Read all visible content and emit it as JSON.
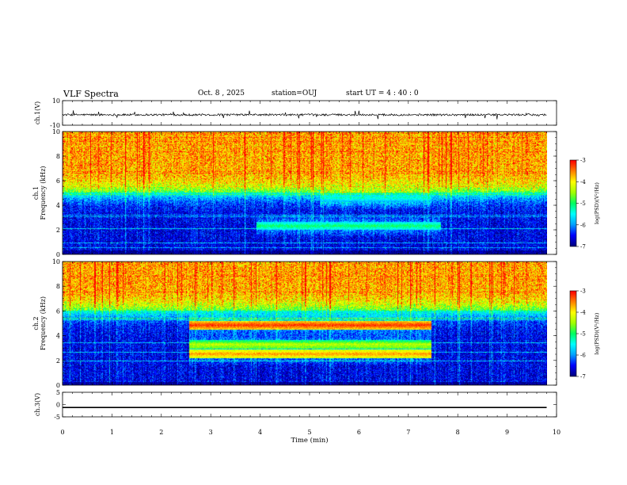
{
  "header": {
    "title": "VLF Spectra",
    "date": "Oct. 8  , 2025",
    "station": "station=OUJ",
    "start_ut": "start  UT =   4 : 40 : 0"
  },
  "colors": {
    "colormap": [
      "#00007f",
      "#0000ff",
      "#00a0ff",
      "#00ffff",
      "#00ff60",
      "#a0ff00",
      "#ffff00",
      "#ff8000",
      "#ff0000"
    ]
  },
  "chart_data": [
    {
      "id": "ch1-waveform",
      "type": "line",
      "ylabel": "ch.1(V)",
      "ylim": [
        -10,
        10
      ],
      "yticks": [
        "10",
        "-10"
      ],
      "xlim": [
        0,
        10
      ],
      "baseline_v": -1.5,
      "trace_end_min": 9.8
    },
    {
      "id": "ch1-spectrogram",
      "type": "heatmap",
      "ylabel": "ch.1\nFrequency (kHz)",
      "ylim": [
        0,
        10
      ],
      "yticks": [
        "0",
        "2",
        "4",
        "6",
        "8",
        "10"
      ],
      "xlim": [
        0,
        10
      ],
      "data_end_min": 9.8,
      "colorbar": {
        "label": "log(PSD)(V²/Hz)",
        "range": [
          -7,
          -3
        ],
        "ticks": [
          "-3",
          "-4",
          "-5",
          "-6",
          "-7"
        ]
      },
      "features": [
        {
          "kind": "noise-floor-khz",
          "value": 5.0
        },
        {
          "kind": "band",
          "t_start": 4.0,
          "t_end": 7.8,
          "f_khz": 2.3,
          "level": -5.0
        },
        {
          "kind": "band",
          "t_start": 5.3,
          "t_end": 7.6,
          "f_khz": 4.6,
          "level": -5.3
        }
      ]
    },
    {
      "id": "ch2-spectrogram",
      "type": "heatmap",
      "ylabel": "ch.2\nFrequency (kHz)",
      "ylim": [
        0,
        10
      ],
      "yticks": [
        "0",
        "2",
        "4",
        "6",
        "8",
        "10"
      ],
      "xlim": [
        0,
        10
      ],
      "data_end_min": 9.8,
      "colorbar": {
        "label": "log(PSD)(V²/Hz)",
        "range": [
          -7,
          -3
        ],
        "ticks": [
          "-3",
          "-4",
          "-5",
          "-6",
          "-7"
        ]
      },
      "features": [
        {
          "kind": "noise-floor-khz",
          "value": 6.0
        },
        {
          "kind": "band",
          "t_start": 2.6,
          "t_end": 7.6,
          "f_khz": 4.85,
          "level": -3.2
        },
        {
          "kind": "band",
          "t_start": 2.6,
          "t_end": 7.6,
          "f_khz": 3.3,
          "level": -4.5
        },
        {
          "kind": "band",
          "t_start": 2.6,
          "t_end": 7.6,
          "f_khz": 2.5,
          "level": -3.6
        }
      ]
    },
    {
      "id": "ch3-waveform",
      "type": "line",
      "ylabel": "ch.3(V)",
      "ylim": [
        -5,
        5
      ],
      "yticks": [
        "5",
        "0",
        "-5"
      ],
      "xlim": [
        0,
        10
      ],
      "baseline_v": -1.2,
      "trace_end_min": 9.8
    }
  ],
  "xaxis": {
    "label": "Time (min)",
    "ticks": [
      "0",
      "1",
      "2",
      "3",
      "4",
      "5",
      "6",
      "7",
      "8",
      "9",
      "10"
    ]
  }
}
